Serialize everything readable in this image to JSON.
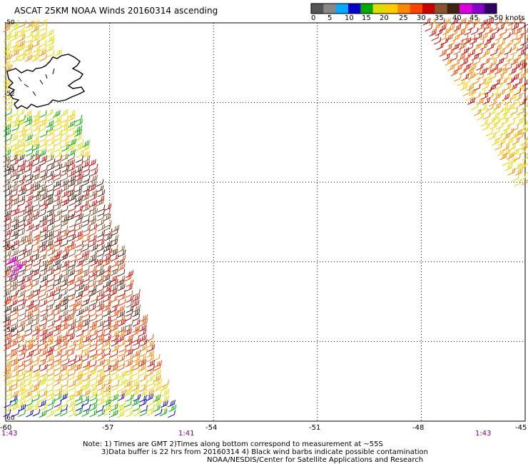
{
  "title": "ASCAT 25KM NOAA Winds 20160314 ascending",
  "legend": {
    "colors": [
      "#555555",
      "#888888",
      "#00aaff",
      "#0000cc",
      "#00aa00",
      "#dddd00",
      "#ffcc00",
      "#ff8800",
      "#ff4400",
      "#cc0000",
      "#885533",
      "#442211",
      "#dd00dd",
      "#8800cc",
      "#330066"
    ],
    "labels": [
      "0",
      "5",
      "10",
      "15",
      "20",
      "25",
      "30",
      "35",
      "40",
      "45",
      ">50 knots"
    ]
  },
  "axes": {
    "x_labels": [
      "-60",
      "-57",
      "-54",
      "-51",
      "-48",
      "-45"
    ],
    "y_labels": [
      "-50",
      "-52",
      "-54",
      "-56",
      "-58",
      "-60"
    ]
  },
  "times": [
    "1:43",
    "1:41",
    "1:43"
  ],
  "notes": {
    "line1": "Note: 1) Times are GMT 2)Times along bottom correspond to measurement at ~55S",
    "line2": "3)Data buffer is 22 hrs from 20160314 4) Black wind barbs indicate possible contamination",
    "line3": "NOAA/NESDIS/Center for Satellite Applications and Research"
  },
  "map": {
    "lon_range": [
      -60,
      -45
    ],
    "lat_range": [
      -60,
      -50
    ],
    "grid": "dotted",
    "swaths": [
      {
        "name": "west-swath",
        "lon_range": [
          -60,
          -55.5
        ],
        "lat_range": [
          -60,
          -50
        ]
      },
      {
        "name": "east-swath",
        "lon_range": [
          -48.2,
          -45
        ],
        "lat_range": [
          -54.3,
          -50
        ]
      }
    ],
    "landmass": "Falkland Islands"
  }
}
